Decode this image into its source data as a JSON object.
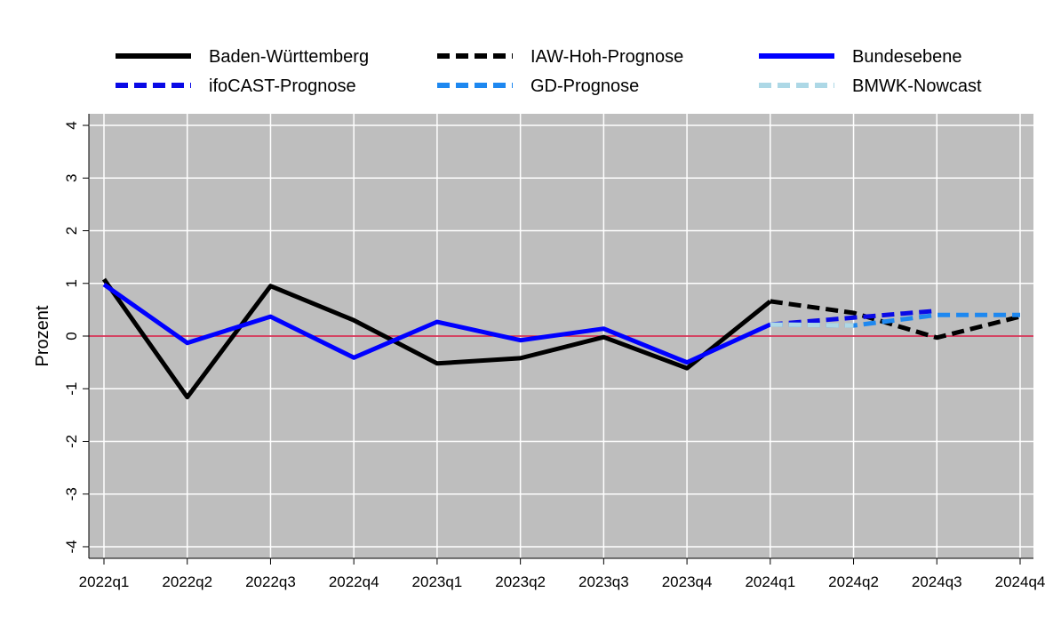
{
  "chart_data": {
    "type": "line",
    "y_label": "Prozent",
    "categories": [
      "2022q1",
      "2022q2",
      "2022q3",
      "2022q4",
      "2023q1",
      "2023q2",
      "2023q3",
      "2023q4",
      "2024q1",
      "2024q2",
      "2024q3",
      "2024q4"
    ],
    "series": [
      {
        "name": "Baden-Württemberg",
        "color": "#000000",
        "dashed": false,
        "values": [
          1.08,
          -1.16,
          0.95,
          0.3,
          -0.52,
          -0.42,
          -0.02,
          -0.61,
          0.66,
          null,
          null,
          null
        ]
      },
      {
        "name": "IAW-Hoh-Prognose",
        "color": "#000000",
        "dashed": true,
        "values": [
          null,
          null,
          null,
          null,
          null,
          null,
          null,
          null,
          0.66,
          0.44,
          -0.03,
          0.37
        ]
      },
      {
        "name": "Bundesebene",
        "color": "#0000ff",
        "dashed": false,
        "values": [
          0.98,
          -0.13,
          0.37,
          -0.41,
          0.27,
          -0.08,
          0.14,
          -0.5,
          0.22,
          null,
          null,
          null
        ]
      },
      {
        "name": "ifoCAST-Prognose",
        "color": "#0a0ae6",
        "dashed": true,
        "values": [
          null,
          null,
          null,
          null,
          null,
          null,
          null,
          null,
          0.22,
          0.35,
          0.48,
          null
        ]
      },
      {
        "name": "GD-Prognose",
        "color": "#1e88f0",
        "dashed": true,
        "values": [
          null,
          null,
          null,
          null,
          null,
          null,
          null,
          null,
          0.22,
          0.2,
          0.4,
          0.4
        ]
      },
      {
        "name": "BMWK-Nowcast",
        "color": "#add8e6",
        "dashed": true,
        "values": [
          null,
          null,
          null,
          null,
          null,
          null,
          null,
          null,
          0.22,
          0.2,
          null,
          null
        ]
      }
    ],
    "ylim": [
      -4.22,
      4.22
    ],
    "yticks": [
      -4,
      -3,
      -2,
      -1,
      0,
      1,
      2,
      3,
      4
    ],
    "grid": true,
    "zero_line_color": "#d0103a",
    "plot_background": "#bebebe"
  }
}
